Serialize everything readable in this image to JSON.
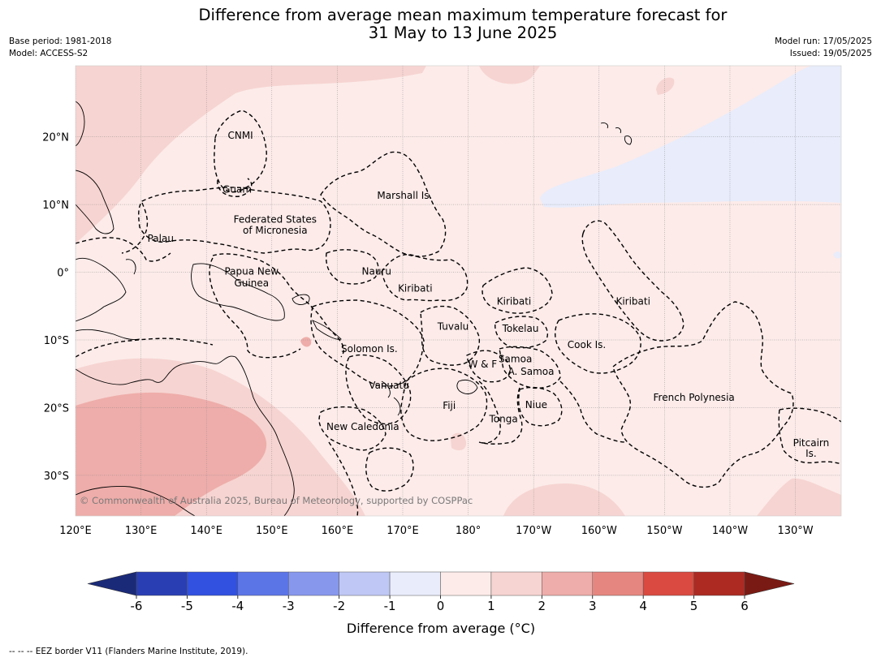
{
  "title_line1": "Difference from average mean maximum temperature forecast for",
  "title_line2": "31 May to 13 June 2025",
  "base_period": "Base period: 1981-2018",
  "model": "Model: ACCESS-S2",
  "model_run": "Model run: 17/05/2025",
  "issued": "Issued: 19/05/2025",
  "copyright": "© Commonwealth of Australia 2025, Bureau of Meteorology, supported by COSPPac",
  "footer": "--  --  -- EEZ border V11 (Flanders Marine Institute, 2019).",
  "map_extent": {
    "lon": [
      120,
      237
    ],
    "lat": [
      -36,
      30.5
    ]
  },
  "x_ticks": [
    {
      "lon": 120,
      "label": "120°E"
    },
    {
      "lon": 130,
      "label": "130°E"
    },
    {
      "lon": 140,
      "label": "140°E"
    },
    {
      "lon": 150,
      "label": "150°E"
    },
    {
      "lon": 160,
      "label": "160°E"
    },
    {
      "lon": 170,
      "label": "170°E"
    },
    {
      "lon": 180,
      "label": "180°"
    },
    {
      "lon": 190,
      "label": "170°W"
    },
    {
      "lon": 200,
      "label": "160°W"
    },
    {
      "lon": 210,
      "label": "150°W"
    },
    {
      "lon": 220,
      "label": "140°W"
    },
    {
      "lon": 230,
      "label": "130°W"
    }
  ],
  "y_ticks": [
    {
      "lat": 20,
      "label": "20°N"
    },
    {
      "lat": 10,
      "label": "10°N"
    },
    {
      "lat": 0,
      "label": "0°"
    },
    {
      "lat": -10,
      "label": "10°S"
    },
    {
      "lat": -20,
      "label": "20°S"
    },
    {
      "lat": -30,
      "label": "30°S"
    }
  ],
  "region_labels": [
    {
      "text": "CNMI",
      "lon": 145.2,
      "lat": 20.2
    },
    {
      "text": "Guam",
      "lon": 144.7,
      "lat": 12.2
    },
    {
      "text": "Marshall Is.",
      "lon": 170.3,
      "lat": 11.3
    },
    {
      "text": "Federated States",
      "lon": 150.5,
      "lat": 7.8
    },
    {
      "text": "of Micronesia",
      "lon": 150.5,
      "lat": 6.2
    },
    {
      "text": "Palau",
      "lon": 133.0,
      "lat": 5.0
    },
    {
      "text": "Papua New",
      "lon": 146.9,
      "lat": 0.1
    },
    {
      "text": "Guinea",
      "lon": 146.9,
      "lat": -1.6
    },
    {
      "text": "Nauru",
      "lon": 166.0,
      "lat": 0.1
    },
    {
      "text": "Kiribati",
      "lon": 171.9,
      "lat": -2.4
    },
    {
      "text": "Kiribati",
      "lon": 187.0,
      "lat": -4.3
    },
    {
      "text": "Kiribati",
      "lon": 205.2,
      "lat": -4.3
    },
    {
      "text": "Tuvalu",
      "lon": 177.7,
      "lat": -8.0
    },
    {
      "text": "Tokelau",
      "lon": 188.0,
      "lat": -8.3
    },
    {
      "text": "Cook Is.",
      "lon": 198.1,
      "lat": -10.7
    },
    {
      "text": "Solomon Is.",
      "lon": 164.9,
      "lat": -11.3
    },
    {
      "text": "Samoa",
      "lon": 187.2,
      "lat": -12.8
    },
    {
      "text": "W & F",
      "lon": 182.2,
      "lat": -13.6
    },
    {
      "text": "A. Samoa",
      "lon": 189.6,
      "lat": -14.7
    },
    {
      "text": "Vanuatu",
      "lon": 167.9,
      "lat": -16.7
    },
    {
      "text": "Fiji",
      "lon": 177.1,
      "lat": -19.7
    },
    {
      "text": "Niue",
      "lon": 190.4,
      "lat": -19.6
    },
    {
      "text": "French Polynesia",
      "lon": 214.5,
      "lat": -18.5
    },
    {
      "text": "Tonga",
      "lon": 185.4,
      "lat": -21.7
    },
    {
      "text": "New Caledonia",
      "lon": 163.9,
      "lat": -22.8
    },
    {
      "text": "Pitcairn",
      "lon": 232.4,
      "lat": -25.2
    },
    {
      "text": "Is.",
      "lon": 232.4,
      "lat": -26.8
    }
  ],
  "colorbar": {
    "label": "Difference from average (°C)",
    "ticks": [
      "-6",
      "-5",
      "-4",
      "-3",
      "-2",
      "-1",
      "0",
      "1",
      "2",
      "3",
      "4",
      "5",
      "6"
    ],
    "under_color": "#1b2a78",
    "over_color": "#7a1a14",
    "colors": [
      "#2a3eb4",
      "#3251e0",
      "#5c75e6",
      "#8797ec",
      "#bfc8f4",
      "#e8ecfb",
      "#fcebe9",
      "#f6d4d1",
      "#eeadaa",
      "#e68680",
      "#da4a40",
      "#ac2a22"
    ]
  }
}
